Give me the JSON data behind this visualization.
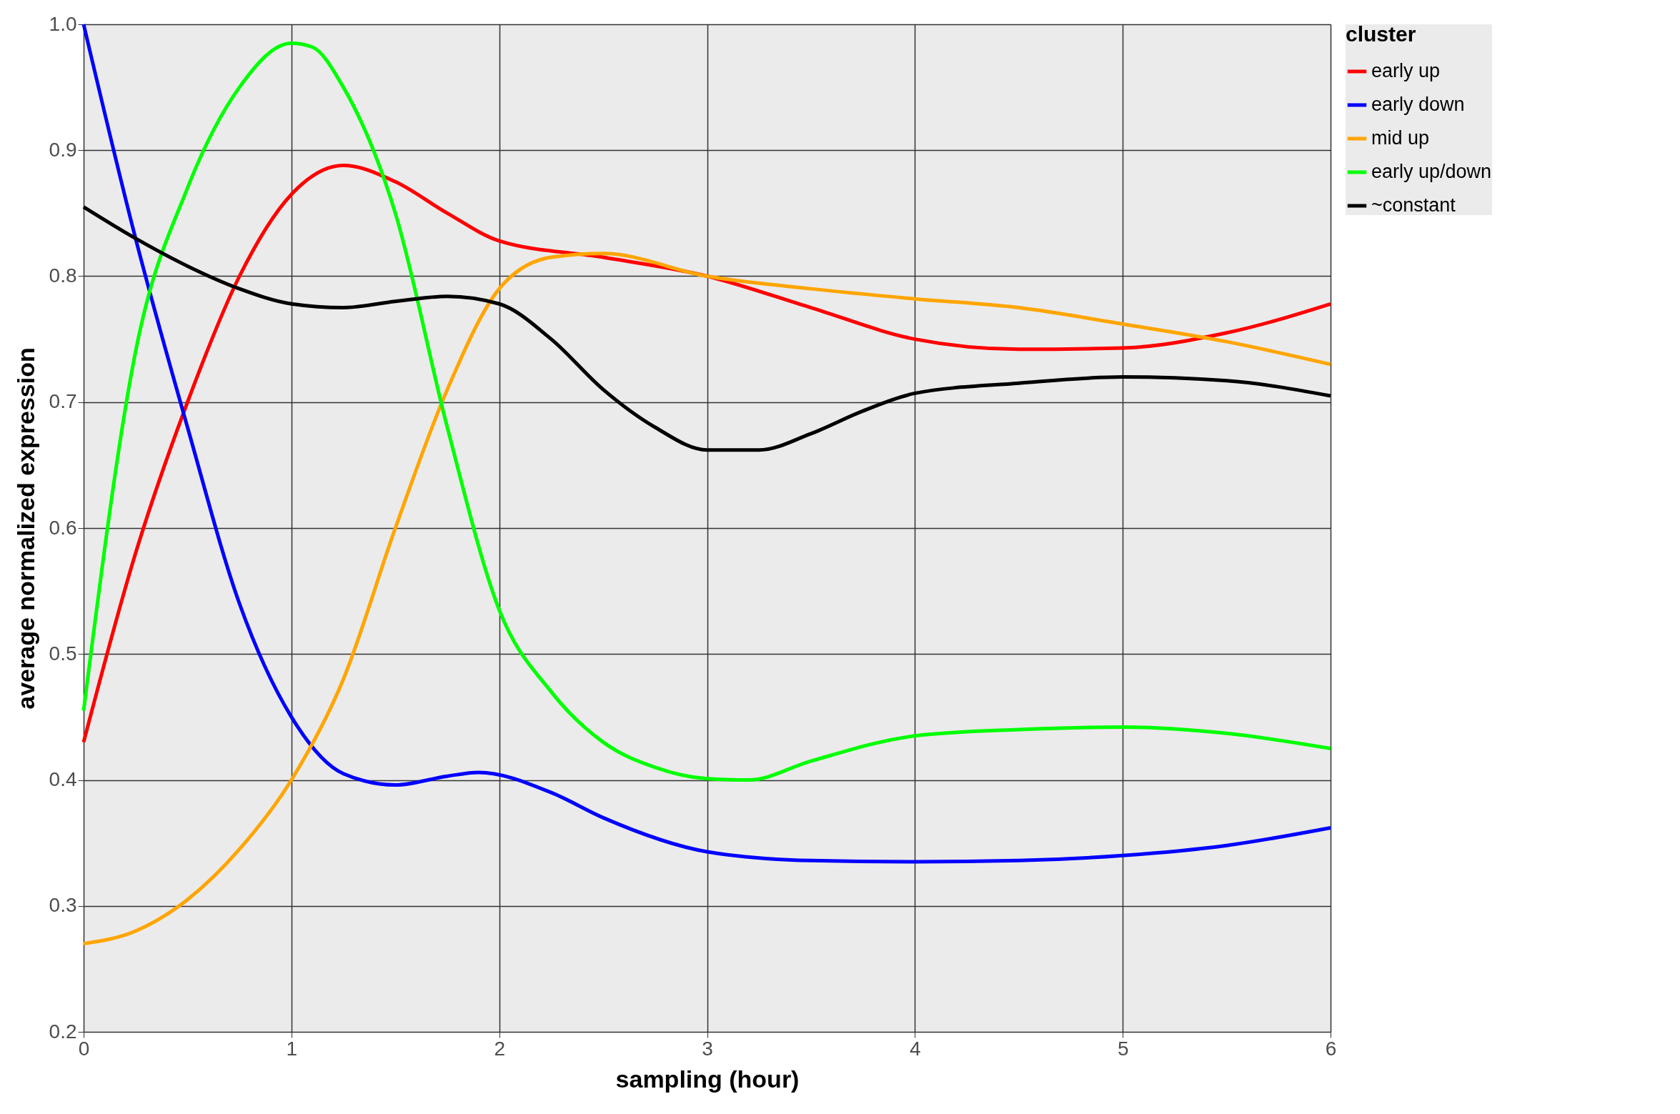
{
  "chart_data": {
    "type": "line",
    "xlabel": "sampling (hour)",
    "ylabel": "average normalized expression",
    "legend_title": "cluster",
    "legend": "right",
    "grid": true,
    "line_style": "solid",
    "marker": "none",
    "xlim": [
      0,
      6
    ],
    "xticks": [
      0,
      1,
      2,
      3,
      4,
      5,
      6
    ],
    "ylim": [
      0.2,
      1.0
    ],
    "yticks": [
      {
        "value": 0.2,
        "label": "0.2"
      },
      {
        "value": 0.3,
        "label": "0.3"
      },
      {
        "value": 0.4,
        "label": "0.4"
      },
      {
        "value": 0.5,
        "label": "0.5"
      },
      {
        "value": 0.6,
        "label": "0.6"
      },
      {
        "value": 0.7,
        "label": "0.7"
      },
      {
        "value": 0.8,
        "label": "0.8"
      },
      {
        "value": 0.9,
        "label": "0.9"
      },
      {
        "value": 1.0,
        "label": "1.0"
      }
    ],
    "series": [
      {
        "name": "early up",
        "color": "#ff0000",
        "x": [
          0,
          0.25,
          0.5,
          0.75,
          1,
          1.25,
          1.5,
          1.75,
          2,
          2.5,
          3,
          3.5,
          4,
          4.5,
          5,
          5.5,
          6
        ],
        "values": [
          0.43,
          0.58,
          0.7,
          0.8,
          0.865,
          0.888,
          0.875,
          0.85,
          0.828,
          0.815,
          0.8,
          0.775,
          0.75,
          0.742,
          0.743,
          0.755,
          0.778
        ]
      },
      {
        "name": "early down",
        "color": "#0000ff",
        "x": [
          0,
          0.25,
          0.5,
          0.75,
          1,
          1.25,
          1.5,
          1.75,
          1.9,
          2.25,
          2.5,
          3,
          3.5,
          4,
          4.5,
          5,
          5.5,
          6
        ],
        "values": [
          1.0,
          0.83,
          0.68,
          0.54,
          0.45,
          0.405,
          0.396,
          0.403,
          0.406,
          0.39,
          0.37,
          0.343,
          0.336,
          0.335,
          0.336,
          0.34,
          0.348,
          0.362
        ]
      },
      {
        "name": "mid up",
        "color": "#ffa500",
        "x": [
          0,
          0.25,
          0.5,
          0.75,
          1,
          1.25,
          1.5,
          1.75,
          2,
          2.25,
          2.5,
          3,
          3.5,
          4,
          4.5,
          5,
          5.5,
          6
        ],
        "values": [
          0.27,
          0.28,
          0.305,
          0.345,
          0.4,
          0.48,
          0.6,
          0.71,
          0.79,
          0.815,
          0.818,
          0.8,
          0.79,
          0.782,
          0.775,
          0.762,
          0.748,
          0.73
        ]
      },
      {
        "name": "early up/down",
        "color": "#00ff00",
        "x": [
          0,
          0.25,
          0.5,
          0.75,
          1,
          1.1,
          1.25,
          1.5,
          1.75,
          2,
          2.25,
          2.5,
          2.75,
          3,
          3.2,
          3.5,
          4,
          4.5,
          5,
          5.5,
          6
        ],
        "values": [
          0.455,
          0.74,
          0.87,
          0.95,
          0.985,
          0.982,
          0.95,
          0.85,
          0.68,
          0.535,
          0.47,
          0.43,
          0.41,
          0.401,
          0.4,
          0.415,
          0.435,
          0.44,
          0.442,
          0.437,
          0.425
        ]
      },
      {
        "name": "~constant",
        "color": "#000000",
        "x": [
          0,
          0.25,
          0.5,
          0.75,
          1,
          1.25,
          1.5,
          1.75,
          2,
          2.25,
          2.5,
          2.75,
          3,
          3.25,
          3.5,
          3.75,
          4,
          4.5,
          5,
          5.5,
          6
        ],
        "values": [
          0.855,
          0.83,
          0.808,
          0.79,
          0.778,
          0.775,
          0.78,
          0.784,
          0.778,
          0.75,
          0.71,
          0.68,
          0.662,
          0.662,
          0.675,
          0.693,
          0.707,
          0.715,
          0.72,
          0.717,
          0.705
        ]
      }
    ]
  }
}
